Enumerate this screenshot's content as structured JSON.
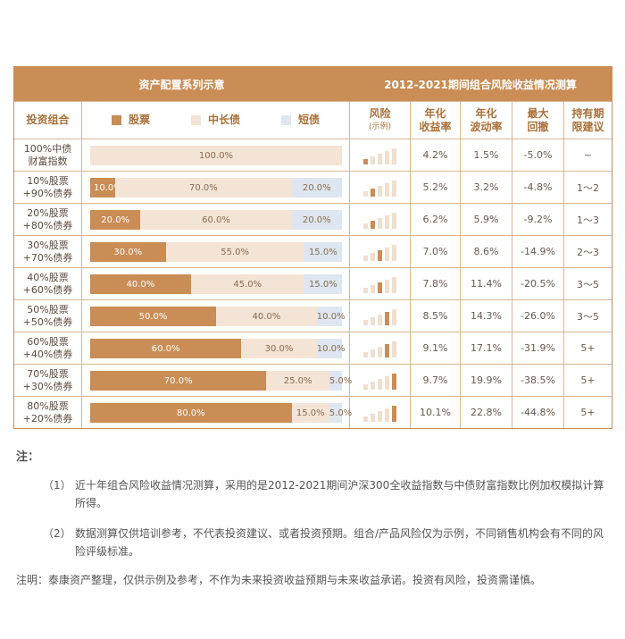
{
  "header": {
    "left_title": "资产配置系列示意",
    "right_title": "2012-2021期间组合风险收益情况测算"
  },
  "columns": {
    "name": "投资组合",
    "legend": [
      "股票",
      "中长债",
      "短债"
    ],
    "risk": "风险",
    "risk_sub": "(示例)",
    "ret": [
      "年化",
      "收益率"
    ],
    "vol": [
      "年化",
      "波动率"
    ],
    "dd": [
      "最大",
      "回撤"
    ],
    "hold": [
      "持有期",
      "限建议"
    ]
  },
  "colors": {
    "stock": "#c98d55",
    "mid_bond": "#f3e4d6",
    "short_bond": "#dde6f1",
    "risk_active": "#c98d55",
    "risk_inactive": "#f1dfcd"
  },
  "chart_data": {
    "type": "bar",
    "stacked": true,
    "orientation": "horizontal",
    "categories": [
      [
        "100%中债",
        "财富指数"
      ],
      [
        "10%股票",
        "+90%债券"
      ],
      [
        "20%股票",
        "+80%债券"
      ],
      [
        "30%股票",
        "+70%债券"
      ],
      [
        "40%股票",
        "+60%债券"
      ],
      [
        "50%股票",
        "+50%债券"
      ],
      [
        "60%股票",
        "+40%债券"
      ],
      [
        "70%股票",
        "+30%债券"
      ],
      [
        "80%股票",
        "+20%债券"
      ]
    ],
    "series": [
      {
        "name": "股票",
        "values": [
          0,
          10,
          20,
          30,
          40,
          50,
          60,
          70,
          80
        ],
        "labels": [
          "",
          "10.0%",
          "20.0%",
          "30.0%",
          "40.0%",
          "50.0%",
          "60.0%",
          "70.0%",
          "80.0%"
        ]
      },
      {
        "name": "中长债",
        "values": [
          100,
          70,
          60,
          55,
          45,
          40,
          30,
          25,
          15
        ],
        "labels": [
          "100.0%",
          "70.0%",
          "60.0%",
          "55.0%",
          "45.0%",
          "40.0%",
          "30.0%",
          "25.0%",
          "15.0%"
        ]
      },
      {
        "name": "短债",
        "values": [
          0,
          20,
          20,
          15,
          15,
          10,
          10,
          5,
          5
        ],
        "labels": [
          "",
          "20.0%",
          "20.0%",
          "15.0%",
          "15.0%",
          "10.0%",
          "10.0%",
          "5.0%",
          "5.0%"
        ]
      }
    ],
    "xlim": [
      0,
      100
    ],
    "risk_level": [
      1,
      2,
      2,
      3,
      3,
      4,
      4,
      5,
      5
    ],
    "annual_return": [
      "4.2%",
      "5.2%",
      "6.2%",
      "7.0%",
      "7.8%",
      "8.5%",
      "9.1%",
      "9.7%",
      "10.1%"
    ],
    "annual_volatility": [
      "1.5%",
      "3.2%",
      "5.9%",
      "8.6%",
      "11.4%",
      "14.3%",
      "17.1%",
      "19.9%",
      "22.8%"
    ],
    "max_drawdown": [
      "-5.0%",
      "-4.8%",
      "-9.2%",
      "-14.9%",
      "-20.5%",
      "-26.0%",
      "-31.9%",
      "-38.5%",
      "-44.8%"
    ],
    "holding_period": [
      "~",
      "1～2",
      "1～3",
      "2～3",
      "3～5",
      "3～5",
      "5+",
      "5+",
      "5+"
    ]
  },
  "notes": {
    "title": "注：",
    "items": [
      {
        "idx": "（1）",
        "text": "近十年组合风险收益情况测算，采用的是2012-2021期间沪深300全收益指数与中债财富指数比例加权模拟计算所得。"
      },
      {
        "idx": "（2）",
        "text": "数据测算仅供培训参考，不代表投资建议、或者投资预期。组合/产品风险仅为示例，不同销售机构会有不同的风险评级标准。"
      }
    ]
  },
  "disclaimer": {
    "label": "注明：",
    "text": "泰康资产整理，仅供示例及参考，不作为未来投资收益预期与未来收益承诺。投资有风险，投资需谨慎。"
  }
}
